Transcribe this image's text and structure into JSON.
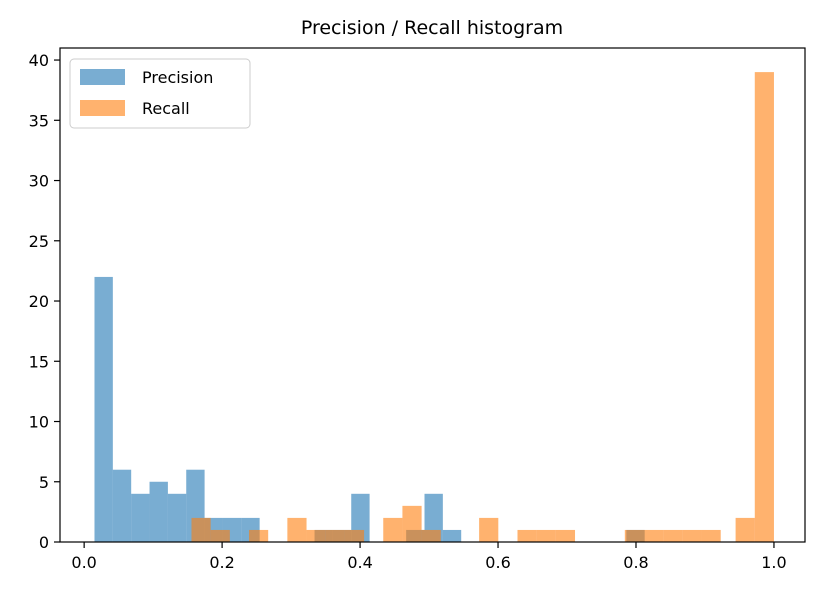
{
  "chart_data": {
    "type": "histogram",
    "title": "Precision / Recall histogram",
    "xlabel": "",
    "ylabel": "",
    "xlim": [
      -0.035,
      1.045
    ],
    "ylim": [
      0,
      41
    ],
    "xticks": [
      0.0,
      0.2,
      0.4,
      0.6,
      0.8,
      1.0
    ],
    "xtick_labels": [
      "0.0",
      "0.2",
      "0.4",
      "0.6",
      "0.8",
      "1.0"
    ],
    "yticks": [
      0,
      5,
      10,
      15,
      20,
      25,
      30,
      35,
      40
    ],
    "ytick_labels": [
      "0",
      "5",
      "10",
      "15",
      "20",
      "25",
      "30",
      "35",
      "40"
    ],
    "grid": false,
    "legend_position": "top-left",
    "series": [
      {
        "name": "Precision",
        "color": "#1f77b4",
        "opacity": 0.6,
        "bins": [
          {
            "x0": 0.015,
            "x1": 0.0416,
            "count": 22
          },
          {
            "x0": 0.0416,
            "x1": 0.0682,
            "count": 6
          },
          {
            "x0": 0.0682,
            "x1": 0.0948,
            "count": 4
          },
          {
            "x0": 0.0948,
            "x1": 0.1214,
            "count": 5
          },
          {
            "x0": 0.1214,
            "x1": 0.148,
            "count": 4
          },
          {
            "x0": 0.148,
            "x1": 0.1746,
            "count": 6
          },
          {
            "x0": 0.1746,
            "x1": 0.2012,
            "count": 2
          },
          {
            "x0": 0.2012,
            "x1": 0.2278,
            "count": 2
          },
          {
            "x0": 0.2278,
            "x1": 0.2544,
            "count": 2
          },
          {
            "x0": 0.334,
            "x1": 0.3606,
            "count": 1
          },
          {
            "x0": 0.3606,
            "x1": 0.3872,
            "count": 1
          },
          {
            "x0": 0.3872,
            "x1": 0.4138,
            "count": 4
          },
          {
            "x0": 0.4668,
            "x1": 0.4934,
            "count": 1
          },
          {
            "x0": 0.4934,
            "x1": 0.52,
            "count": 4
          },
          {
            "x0": 0.52,
            "x1": 0.5466,
            "count": 1
          },
          {
            "x0": 0.786,
            "x1": 0.8126,
            "count": 1
          }
        ]
      },
      {
        "name": "Recall",
        "color": "#ff7f0e",
        "opacity": 0.6,
        "bins": [
          {
            "x0": 0.1556,
            "x1": 0.1834,
            "count": 2
          },
          {
            "x0": 0.1834,
            "x1": 0.2112,
            "count": 1
          },
          {
            "x0": 0.239,
            "x1": 0.2668,
            "count": 1
          },
          {
            "x0": 0.2946,
            "x1": 0.3224,
            "count": 2
          },
          {
            "x0": 0.3224,
            "x1": 0.3502,
            "count": 1
          },
          {
            "x0": 0.3502,
            "x1": 0.378,
            "count": 1
          },
          {
            "x0": 0.378,
            "x1": 0.4058,
            "count": 1
          },
          {
            "x0": 0.4336,
            "x1": 0.4614,
            "count": 2
          },
          {
            "x0": 0.4614,
            "x1": 0.4892,
            "count": 3
          },
          {
            "x0": 0.4892,
            "x1": 0.517,
            "count": 1
          },
          {
            "x0": 0.5726,
            "x1": 0.6004,
            "count": 2
          },
          {
            "x0": 0.6282,
            "x1": 0.656,
            "count": 1
          },
          {
            "x0": 0.656,
            "x1": 0.6838,
            "count": 1
          },
          {
            "x0": 0.6838,
            "x1": 0.7116,
            "count": 1
          },
          {
            "x0": 0.7838,
            "x1": 0.8116,
            "count": 1
          },
          {
            "x0": 0.8116,
            "x1": 0.8394,
            "count": 1
          },
          {
            "x0": 0.8394,
            "x1": 0.8672,
            "count": 1
          },
          {
            "x0": 0.8672,
            "x1": 0.895,
            "count": 1
          },
          {
            "x0": 0.895,
            "x1": 0.9228,
            "count": 1
          },
          {
            "x0": 0.9444,
            "x1": 0.9722,
            "count": 2
          },
          {
            "x0": 0.9722,
            "x1": 1.0,
            "count": 39
          }
        ]
      }
    ]
  }
}
